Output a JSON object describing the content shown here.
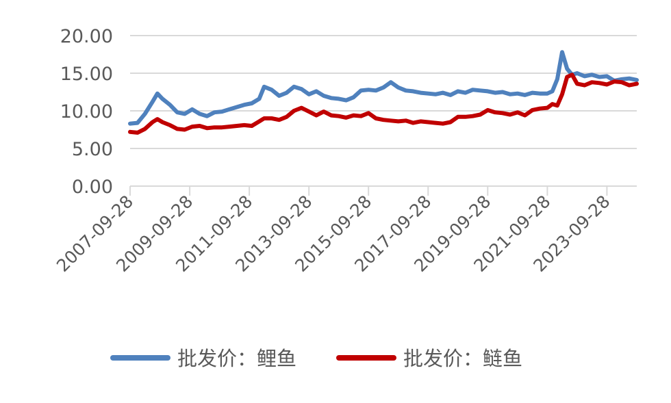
{
  "chart_data": {
    "type": "line",
    "title": "",
    "xlabel": "",
    "ylabel": "",
    "ylim": [
      0,
      20
    ],
    "y_ticks": [
      "0.00",
      "5.00",
      "10.00",
      "15.00",
      "20.00"
    ],
    "x_ticks": [
      "2007-09-28",
      "2009-09-28",
      "2011-09-28",
      "2013-09-28",
      "2015-09-28",
      "2017-09-28",
      "2019-09-28",
      "2021-09-28",
      "2023-09-28"
    ],
    "x_range": [
      "2007-09-28",
      "2024-09-28"
    ],
    "grid": "horizontal",
    "legend_position": "bottom",
    "series": [
      {
        "name": "批发价：鲤鱼",
        "color": "#4F81BD",
        "points": [
          [
            "2007-09-28",
            8.3
          ],
          [
            "2007-12-28",
            8.4
          ],
          [
            "2008-03-28",
            9.6
          ],
          [
            "2008-06-28",
            11.2
          ],
          [
            "2008-08-28",
            12.3
          ],
          [
            "2008-10-28",
            11.6
          ],
          [
            "2009-01-28",
            10.8
          ],
          [
            "2009-04-28",
            9.8
          ],
          [
            "2009-07-28",
            9.6
          ],
          [
            "2009-10-28",
            10.2
          ],
          [
            "2010-01-28",
            9.6
          ],
          [
            "2010-04-28",
            9.3
          ],
          [
            "2010-07-28",
            9.8
          ],
          [
            "2010-10-28",
            9.9
          ],
          [
            "2011-01-28",
            10.2
          ],
          [
            "2011-04-28",
            10.5
          ],
          [
            "2011-07-28",
            10.8
          ],
          [
            "2011-10-28",
            11.0
          ],
          [
            "2012-01-28",
            11.6
          ],
          [
            "2012-03-28",
            13.2
          ],
          [
            "2012-06-28",
            12.8
          ],
          [
            "2012-09-28",
            12.0
          ],
          [
            "2012-12-28",
            12.4
          ],
          [
            "2013-03-28",
            13.2
          ],
          [
            "2013-06-28",
            12.9
          ],
          [
            "2013-09-28",
            12.2
          ],
          [
            "2013-12-28",
            12.6
          ],
          [
            "2014-03-28",
            12.0
          ],
          [
            "2014-06-28",
            11.7
          ],
          [
            "2014-09-28",
            11.6
          ],
          [
            "2014-12-28",
            11.4
          ],
          [
            "2015-03-28",
            11.8
          ],
          [
            "2015-06-28",
            12.7
          ],
          [
            "2015-09-28",
            12.8
          ],
          [
            "2015-12-28",
            12.7
          ],
          [
            "2016-03-28",
            13.1
          ],
          [
            "2016-06-28",
            13.8
          ],
          [
            "2016-09-28",
            13.1
          ],
          [
            "2016-12-28",
            12.7
          ],
          [
            "2017-03-28",
            12.6
          ],
          [
            "2017-06-28",
            12.4
          ],
          [
            "2017-09-28",
            12.3
          ],
          [
            "2017-12-28",
            12.2
          ],
          [
            "2018-03-28",
            12.4
          ],
          [
            "2018-06-28",
            12.1
          ],
          [
            "2018-09-28",
            12.6
          ],
          [
            "2018-12-28",
            12.4
          ],
          [
            "2019-03-28",
            12.8
          ],
          [
            "2019-06-28",
            12.7
          ],
          [
            "2019-09-28",
            12.6
          ],
          [
            "2019-12-28",
            12.4
          ],
          [
            "2020-03-28",
            12.5
          ],
          [
            "2020-06-28",
            12.2
          ],
          [
            "2020-09-28",
            12.3
          ],
          [
            "2020-12-28",
            12.1
          ],
          [
            "2021-03-28",
            12.4
          ],
          [
            "2021-06-28",
            12.3
          ],
          [
            "2021-09-28",
            12.3
          ],
          [
            "2021-11-28",
            12.6
          ],
          [
            "2022-01-28",
            14.2
          ],
          [
            "2022-03-28",
            17.8
          ],
          [
            "2022-05-28",
            15.6
          ],
          [
            "2022-07-28",
            14.8
          ],
          [
            "2022-09-28",
            15.0
          ],
          [
            "2022-12-28",
            14.6
          ],
          [
            "2023-03-28",
            14.8
          ],
          [
            "2023-06-28",
            14.5
          ],
          [
            "2023-09-28",
            14.6
          ],
          [
            "2023-12-28",
            14.0
          ],
          [
            "2024-03-28",
            14.2
          ],
          [
            "2024-06-28",
            14.3
          ],
          [
            "2024-09-28",
            14.1
          ]
        ]
      },
      {
        "name": "批发价：鲢鱼",
        "color": "#C00000",
        "points": [
          [
            "2007-09-28",
            7.2
          ],
          [
            "2007-12-28",
            7.1
          ],
          [
            "2008-03-28",
            7.6
          ],
          [
            "2008-06-28",
            8.5
          ],
          [
            "2008-08-28",
            8.9
          ],
          [
            "2008-10-28",
            8.5
          ],
          [
            "2009-01-28",
            8.1
          ],
          [
            "2009-04-28",
            7.6
          ],
          [
            "2009-07-28",
            7.5
          ],
          [
            "2009-10-28",
            7.9
          ],
          [
            "2010-01-28",
            8.0
          ],
          [
            "2010-04-28",
            7.7
          ],
          [
            "2010-07-28",
            7.8
          ],
          [
            "2010-10-28",
            7.8
          ],
          [
            "2011-01-28",
            7.9
          ],
          [
            "2011-04-28",
            8.0
          ],
          [
            "2011-07-28",
            8.1
          ],
          [
            "2011-10-28",
            8.0
          ],
          [
            "2012-01-28",
            8.6
          ],
          [
            "2012-03-28",
            9.0
          ],
          [
            "2012-06-28",
            9.0
          ],
          [
            "2012-09-28",
            8.8
          ],
          [
            "2012-12-28",
            9.2
          ],
          [
            "2013-03-28",
            10.0
          ],
          [
            "2013-06-28",
            10.4
          ],
          [
            "2013-09-28",
            9.9
          ],
          [
            "2013-12-28",
            9.4
          ],
          [
            "2014-03-28",
            9.9
          ],
          [
            "2014-06-28",
            9.4
          ],
          [
            "2014-09-28",
            9.3
          ],
          [
            "2014-12-28",
            9.1
          ],
          [
            "2015-03-28",
            9.4
          ],
          [
            "2015-06-28",
            9.3
          ],
          [
            "2015-09-28",
            9.7
          ],
          [
            "2015-12-28",
            9.0
          ],
          [
            "2016-03-28",
            8.8
          ],
          [
            "2016-06-28",
            8.7
          ],
          [
            "2016-09-28",
            8.6
          ],
          [
            "2016-12-28",
            8.7
          ],
          [
            "2017-03-28",
            8.4
          ],
          [
            "2017-06-28",
            8.6
          ],
          [
            "2017-09-28",
            8.5
          ],
          [
            "2017-12-28",
            8.4
          ],
          [
            "2018-03-28",
            8.3
          ],
          [
            "2018-06-28",
            8.5
          ],
          [
            "2018-09-28",
            9.2
          ],
          [
            "2018-12-28",
            9.2
          ],
          [
            "2019-03-28",
            9.3
          ],
          [
            "2019-06-28",
            9.5
          ],
          [
            "2019-09-28",
            10.1
          ],
          [
            "2019-12-28",
            9.8
          ],
          [
            "2020-03-28",
            9.7
          ],
          [
            "2020-06-28",
            9.5
          ],
          [
            "2020-09-28",
            9.8
          ],
          [
            "2020-12-28",
            9.4
          ],
          [
            "2021-03-28",
            10.1
          ],
          [
            "2021-06-28",
            10.3
          ],
          [
            "2021-09-28",
            10.4
          ],
          [
            "2021-11-28",
            10.9
          ],
          [
            "2022-01-28",
            10.7
          ],
          [
            "2022-03-28",
            12.2
          ],
          [
            "2022-05-28",
            14.5
          ],
          [
            "2022-07-28",
            14.8
          ],
          [
            "2022-09-28",
            13.6
          ],
          [
            "2022-12-28",
            13.4
          ],
          [
            "2023-03-28",
            13.8
          ],
          [
            "2023-06-28",
            13.7
          ],
          [
            "2023-09-28",
            13.5
          ],
          [
            "2023-12-28",
            13.9
          ],
          [
            "2024-03-28",
            13.8
          ],
          [
            "2024-06-28",
            13.4
          ],
          [
            "2024-09-28",
            13.6
          ]
        ]
      }
    ]
  }
}
